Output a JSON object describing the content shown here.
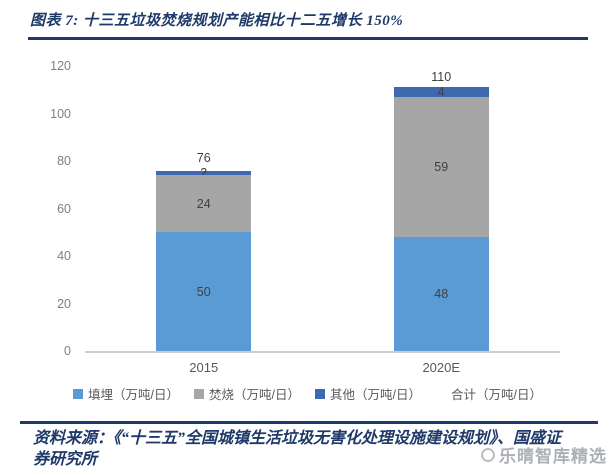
{
  "header": {
    "title": "图表 7: 十三五垃圾焚烧规划产能相比十二五增长 150%"
  },
  "chart_data": {
    "type": "bar",
    "stacked": true,
    "categories": [
      "2015",
      "2020E"
    ],
    "series": [
      {
        "name": "填埋（万吨/日）",
        "color": "#5B9BD5",
        "values": [
          50,
          48
        ]
      },
      {
        "name": "焚烧（万吨/日）",
        "color": "#A6A6A6",
        "values": [
          24,
          59
        ]
      },
      {
        "name": "其他（万吨/日）",
        "color": "#3E68B0",
        "values": [
          2,
          4
        ]
      }
    ],
    "totals": {
      "name": "合计（万吨/日）",
      "values": [
        76,
        110
      ]
    },
    "title": "",
    "xlabel": "",
    "ylabel": "",
    "ylim": [
      0,
      120
    ],
    "yticks": [
      0,
      20,
      40,
      60,
      80,
      100,
      120
    ],
    "grid": false,
    "legend_position": "bottom"
  },
  "footer": {
    "source": "资料来源：《“十三五”全国城镇生活垃圾无害化处理设施建设规划》、国盛证券研究所"
  },
  "watermark": {
    "text": "乐晴智库精选"
  },
  "colors": {
    "accent_navy": "#1F3A68",
    "bar_blue": "#5B9BD5",
    "bar_gray": "#A6A6A6",
    "bar_darkblue": "#3E68B0",
    "axis_text_gray": "#7F7F7F",
    "data_label_gray": "#3F3F3F",
    "watermark_gray": "#8E939A"
  }
}
